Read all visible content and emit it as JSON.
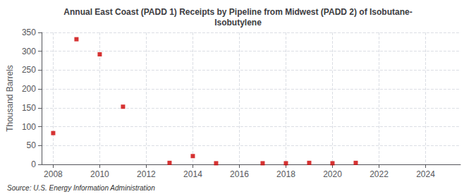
{
  "chart_data": {
    "type": "scatter",
    "title": "Annual East Coast (PADD 1) Receipts by Pipeline from Midwest (PADD 2) of Isobutane-\nIsobutylene",
    "ylabel": "Thousand Barrels",
    "annotations": [
      "Source: U.S. Energy Information Administration"
    ],
    "x": [
      2008,
      2009,
      2010,
      2011,
      2013,
      2014,
      2015,
      2017,
      2018,
      2019,
      2020,
      2021
    ],
    "values": [
      83,
      332,
      292,
      153,
      4,
      22,
      3,
      3,
      3,
      4,
      3,
      4
    ],
    "color": "#cc0000",
    "marker": "square",
    "xlim": [
      2007.5,
      2025.5
    ],
    "xticks": [
      2008,
      2010,
      2012,
      2014,
      2016,
      2018,
      2020,
      2022,
      2024
    ],
    "ylim": [
      0,
      350
    ],
    "yticks": [
      0,
      50,
      100,
      150,
      200,
      250,
      300,
      350
    ],
    "grid": true
  }
}
